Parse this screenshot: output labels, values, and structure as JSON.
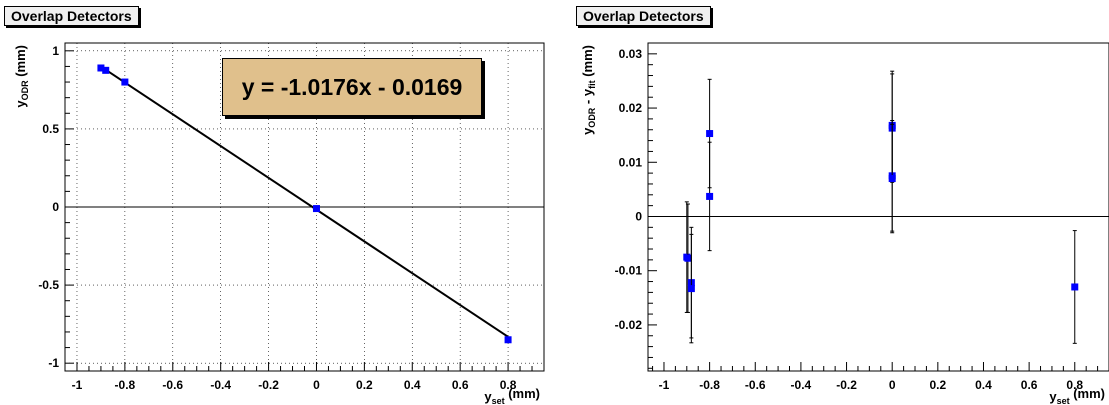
{
  "colors": {
    "marker": "#0000ff",
    "fit_box": "#e0c08c",
    "title_box": "#f0f0f0"
  },
  "chart_data": [
    {
      "type": "scatter",
      "title": "Overlap Detectors",
      "xlabel": {
        "main": "y",
        "sub": "set",
        "unit": "(mm)"
      },
      "ylabel": {
        "main": "y",
        "sub": "ODR",
        "unit": "(mm)"
      },
      "xlim": [
        -1.05,
        0.95
      ],
      "ylim": [
        -1.05,
        1.05
      ],
      "xticks": [
        -1,
        -0.8,
        -0.6,
        -0.4,
        -0.2,
        0,
        0.2,
        0.4,
        0.6,
        0.8
      ],
      "xtick_labels": [
        "-1",
        "-0.8",
        "-0.6",
        "-0.4",
        "-0.2",
        "0",
        "0.2",
        "0.4",
        "0.6",
        "0.8"
      ],
      "yticks": [
        -1,
        -0.5,
        0,
        0.5,
        1
      ],
      "ytick_labels": [
        "-1",
        "-0.5",
        "0",
        "0.5",
        "1"
      ],
      "grid": true,
      "zero_line": true,
      "fit": {
        "label": "y = -1.0176x - 0.0169",
        "slope": -1.0176,
        "intercept": -0.0169
      },
      "points": [
        {
          "x": -0.9,
          "y": 0.89
        },
        {
          "x": -0.88,
          "y": 0.875
        },
        {
          "x": -0.8,
          "y": 0.8
        },
        {
          "x": 0,
          "y": -0.01
        },
        {
          "x": 0.8,
          "y": -0.85
        }
      ]
    },
    {
      "type": "scatter",
      "title": "Overlap Detectors",
      "xlabel": {
        "main": "y",
        "sub": "set",
        "unit": "(mm)"
      },
      "ylabel": {
        "main": "y",
        "sub": "ODR",
        "mid": " - y",
        "sub2": "fit",
        "unit": "(mm)"
      },
      "xlim": [
        -1.07,
        0.95
      ],
      "ylim": [
        -0.0285,
        0.032
      ],
      "xticks": [
        -1,
        -0.8,
        -0.6,
        -0.4,
        -0.2,
        0,
        0.2,
        0.4,
        0.6,
        0.8
      ],
      "xtick_labels": [
        "-1",
        "-0.8",
        "-0.6",
        "-0.4",
        "-0.2",
        "0",
        "0.2",
        "0.4",
        "0.6",
        "0.8"
      ],
      "yticks": [
        -0.02,
        -0.01,
        0,
        0.01,
        0.02,
        0.03
      ],
      "ytick_labels": [
        "-0.02",
        "-0.01",
        "0",
        "0.01",
        "0.02",
        "0.03"
      ],
      "grid": false,
      "zero_line": true,
      "points": [
        {
          "x": -0.9,
          "y": -0.0075,
          "err": 0.0102
        },
        {
          "x": -0.895,
          "y": -0.0077,
          "err": 0.01
        },
        {
          "x": -0.88,
          "y": -0.0122,
          "err": 0.0102
        },
        {
          "x": -0.88,
          "y": -0.0133,
          "err": 0.01
        },
        {
          "x": -0.8,
          "y": 0.0153,
          "err": 0.01
        },
        {
          "x": -0.8,
          "y": 0.0037,
          "err": 0.01
        },
        {
          "x": 0,
          "y": 0.0168,
          "err": 0.01
        },
        {
          "x": 0,
          "y": 0.0163,
          "err": 0.01
        },
        {
          "x": 0,
          "y": 0.0075,
          "err": 0.0102
        },
        {
          "x": 0,
          "y": 0.007,
          "err": 0.01
        },
        {
          "x": 0.8,
          "y": -0.013,
          "err": 0.0104
        }
      ]
    }
  ]
}
